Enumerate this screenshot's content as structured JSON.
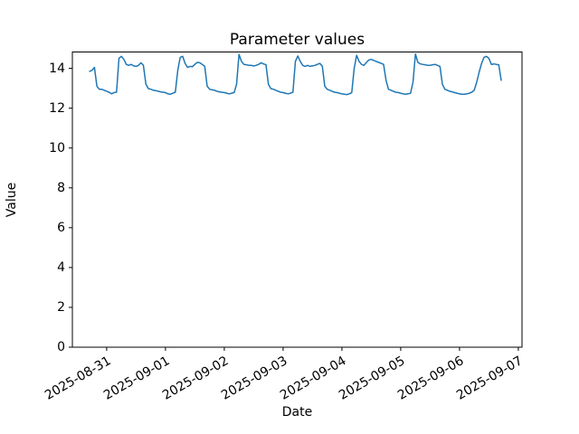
{
  "figure": {
    "background": "#ffffff",
    "text_color": "#000000",
    "axes_color": "#000000"
  },
  "chart_data": {
    "type": "line",
    "title": "Parameter values",
    "xlabel": "Date",
    "ylabel": "Value",
    "legend": null,
    "grid": false,
    "line_color": "#1f77b4",
    "line_width": 1.5,
    "x_unit": "hours since 2025-08-31 00:00",
    "x_start_offset_hours": -7,
    "x_step_hours": 1,
    "xlim_hours": [
      -14,
      169.5
    ],
    "ylim": [
      0,
      14.82
    ],
    "x_tick_positions_hours": [
      0,
      24,
      48,
      72,
      96,
      120,
      144,
      168
    ],
    "x_tick_labels": [
      "2025-08-31",
      "2025-09-01",
      "2025-09-02",
      "2025-09-03",
      "2025-09-04",
      "2025-09-05",
      "2025-09-06",
      "2025-09-07"
    ],
    "y_tick_values": [
      0,
      2,
      4,
      6,
      8,
      10,
      12,
      14
    ],
    "values": [
      13.85,
      13.9,
      14.05,
      13.1,
      12.95,
      12.95,
      12.9,
      12.85,
      12.8,
      12.72,
      12.78,
      12.8,
      14.5,
      14.6,
      14.45,
      14.2,
      14.15,
      14.2,
      14.12,
      14.1,
      14.15,
      14.28,
      14.15,
      13.2,
      12.98,
      12.95,
      12.9,
      12.88,
      12.85,
      12.82,
      12.8,
      12.78,
      12.72,
      12.7,
      12.75,
      12.8,
      13.9,
      14.55,
      14.6,
      14.25,
      14.05,
      14.1,
      14.08,
      14.2,
      14.3,
      14.28,
      14.2,
      14.1,
      13.1,
      12.95,
      12.92,
      12.9,
      12.85,
      12.82,
      12.8,
      12.78,
      12.75,
      12.72,
      12.75,
      12.78,
      13.2,
      14.7,
      14.35,
      14.2,
      14.18,
      14.15,
      14.15,
      14.12,
      14.15,
      14.2,
      14.28,
      14.22,
      14.18,
      13.2,
      12.98,
      12.95,
      12.9,
      12.85,
      12.8,
      12.78,
      12.75,
      12.72,
      12.75,
      12.8,
      14.35,
      14.62,
      14.35,
      14.15,
      14.1,
      14.15,
      14.1,
      14.12,
      14.15,
      14.2,
      14.25,
      14.1,
      13.1,
      12.95,
      12.9,
      12.85,
      12.8,
      12.78,
      12.75,
      12.72,
      12.7,
      12.68,
      12.72,
      12.78,
      14.0,
      14.65,
      14.35,
      14.2,
      14.15,
      14.3,
      14.42,
      14.45,
      14.4,
      14.35,
      14.3,
      14.25,
      14.2,
      13.4,
      12.95,
      12.9,
      12.85,
      12.8,
      12.78,
      12.75,
      12.72,
      12.7,
      12.72,
      12.75,
      13.3,
      14.72,
      14.3,
      14.22,
      14.2,
      14.18,
      14.15,
      14.15,
      14.18,
      14.2,
      14.15,
      14.1,
      13.2,
      12.95,
      12.9,
      12.85,
      12.82,
      12.78,
      12.75,
      12.72,
      12.7,
      12.7,
      12.72,
      12.75,
      12.8,
      12.9,
      13.3,
      13.8,
      14.25,
      14.55,
      14.6,
      14.5,
      14.2,
      14.22,
      14.2,
      14.18,
      13.4
    ]
  }
}
